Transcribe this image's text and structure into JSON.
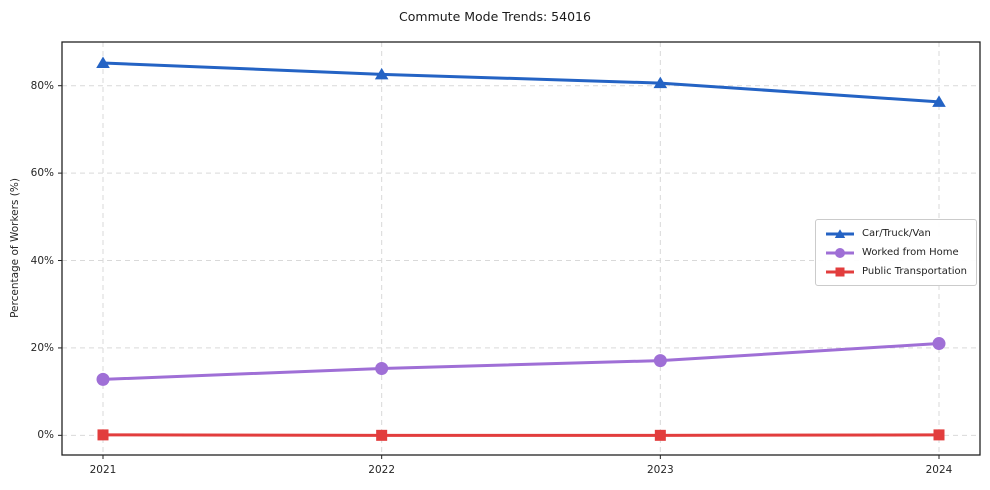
{
  "page": {
    "title": "Commute Mode Trends: 54016"
  },
  "colors": {
    "background": "#ffffff",
    "grid": "#d9d9d9",
    "spine": "#222222",
    "text": "#262626",
    "series_blue": "#2463c4",
    "series_purple": "#9f6fd6",
    "series_red": "#e23d3d"
  },
  "chart_data": {
    "type": "line",
    "title": "Commute Mode Trends: 54016",
    "xlabel": "",
    "ylabel": "Percentage of Workers (%)",
    "categories": [
      "2021",
      "2022",
      "2023",
      "2024"
    ],
    "y_ticks": [
      0,
      20,
      40,
      60,
      80
    ],
    "y_tick_labels": [
      "0%",
      "20%",
      "40%",
      "60%",
      "80%"
    ],
    "ylim": [
      -4.5,
      90
    ],
    "grid": true,
    "grid_style": "dashed",
    "legend_position": "center right",
    "series": [
      {
        "name": "Car/Truck/Van",
        "marker": "triangle",
        "color": "#2463c4",
        "values": [
          85.2,
          82.6,
          80.6,
          76.3
        ]
      },
      {
        "name": "Worked from Home",
        "marker": "circle",
        "color": "#9f6fd6",
        "values": [
          12.8,
          15.3,
          17.1,
          21.0
        ]
      },
      {
        "name": "Public Transportation",
        "marker": "square",
        "color": "#e23d3d",
        "values": [
          0.1,
          0.0,
          0.0,
          0.1
        ]
      }
    ]
  }
}
